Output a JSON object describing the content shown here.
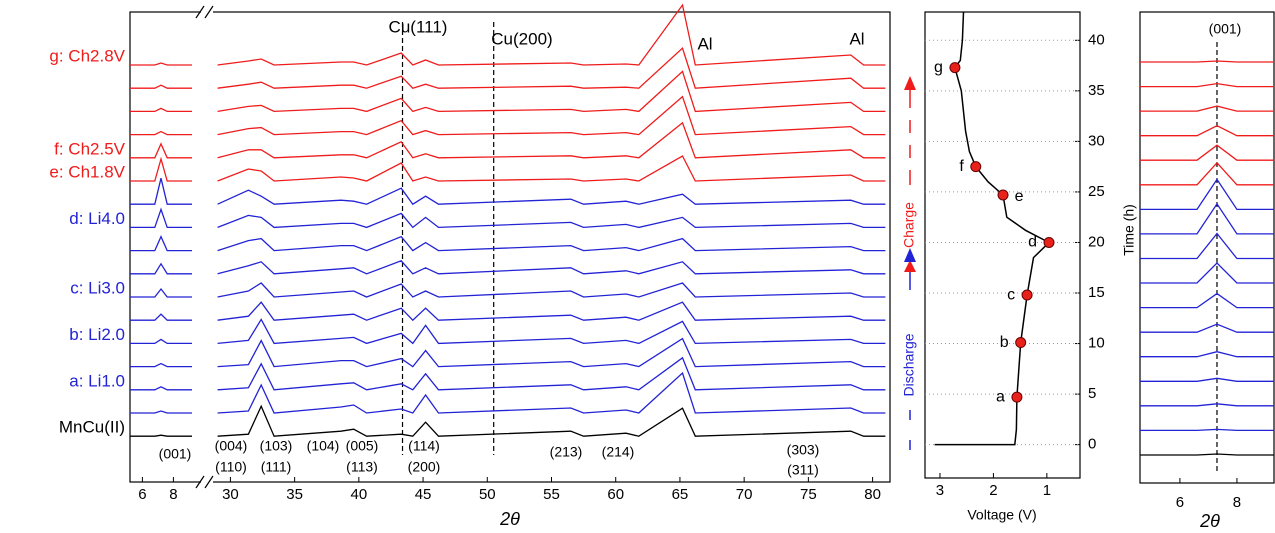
{
  "chart_data": [
    {
      "type": "line",
      "offset": true,
      "xlabel": "2θ",
      "xlim": [
        28.8,
        81.2
      ],
      "xticks": [
        30,
        35,
        40,
        45,
        50,
        55,
        60,
        65,
        70,
        75,
        80
      ],
      "x": [
        29,
        31.4,
        32.4,
        33.4,
        38.6,
        39.6,
        40.6,
        43.3,
        44.2,
        45.2,
        46.2,
        56.5,
        57.5,
        60.8,
        61.8,
        65.2,
        66.2,
        78.3,
        79.3,
        81
      ],
      "reference_lines": [
        43.4,
        50.5
      ],
      "annotations": [
        "(004)",
        "(110)",
        "(103)",
        "(111)",
        "(104)",
        "(005)",
        "(113)",
        "(114)",
        "(200)",
        "(213)",
        "(214)",
        "(303)",
        "(311)",
        "Cu(111)",
        "Cu(200)",
        "Al",
        "Al"
      ],
      "series": [
        {
          "name": "g: Ch2.8V",
          "color": "#f01c1c",
          "values": [
            0,
            4,
            6,
            0,
            3,
            3,
            0,
            12,
            0,
            5,
            0,
            2,
            0,
            1,
            0,
            60,
            0,
            10,
            0,
            0
          ]
        },
        {
          "color": "#f01c1c",
          "values": [
            0,
            4,
            6,
            0,
            3,
            3,
            0,
            12,
            0,
            4,
            0,
            2,
            0,
            1,
            0,
            40,
            0,
            10,
            0,
            0
          ]
        },
        {
          "color": "#f01c1c",
          "values": [
            0,
            5,
            6,
            0,
            3,
            3,
            0,
            13,
            0,
            4,
            0,
            2,
            0,
            2,
            0,
            40,
            0,
            9,
            0,
            0
          ]
        },
        {
          "color": "#f01c1c",
          "values": [
            0,
            6,
            7,
            0,
            3,
            3,
            0,
            14,
            0,
            4,
            0,
            2,
            0,
            2,
            0,
            38,
            0,
            8,
            0,
            0
          ]
        },
        {
          "name": "f: Ch2.5V",
          "color": "#f01c1c",
          "values": [
            0,
            8,
            8,
            0,
            3,
            3,
            0,
            16,
            0,
            4,
            0,
            2,
            0,
            2,
            0,
            35,
            0,
            8,
            0,
            0
          ]
        },
        {
          "name": "e: Ch1.8V",
          "color": "#f01c1c",
          "values": [
            0,
            12,
            10,
            0,
            4,
            3,
            0,
            18,
            0,
            4,
            0,
            2,
            0,
            2,
            0,
            25,
            0,
            6,
            0,
            0
          ]
        },
        {
          "color": "#2323d6",
          "values": [
            0,
            14,
            8,
            0,
            4,
            3,
            0,
            16,
            0,
            8,
            0,
            5,
            0,
            3,
            0,
            10,
            0,
            4,
            0,
            0
          ]
        },
        {
          "name": "d: Li4.0",
          "color": "#2323d6",
          "values": [
            0,
            12,
            10,
            0,
            4,
            4,
            0,
            14,
            0,
            10,
            0,
            5,
            0,
            3,
            0,
            10,
            0,
            4,
            0,
            0
          ]
        },
        {
          "color": "#2323d6",
          "values": [
            0,
            10,
            12,
            0,
            5,
            5,
            0,
            14,
            0,
            8,
            0,
            5,
            0,
            3,
            0,
            12,
            0,
            4,
            0,
            0
          ]
        },
        {
          "color": "#2323d6",
          "values": [
            0,
            8,
            12,
            0,
            5,
            6,
            0,
            13,
            0,
            6,
            0,
            6,
            0,
            3,
            0,
            12,
            0,
            4,
            0,
            0
          ]
        },
        {
          "name": "c: Li3.0",
          "color": "#2323d6",
          "values": [
            0,
            6,
            14,
            0,
            5,
            6,
            0,
            13,
            0,
            6,
            0,
            6,
            0,
            3,
            0,
            14,
            0,
            4,
            0,
            0
          ]
        },
        {
          "color": "#2323d6",
          "values": [
            0,
            4,
            18,
            0,
            5,
            6,
            0,
            12,
            0,
            12,
            0,
            5,
            0,
            3,
            0,
            18,
            0,
            4,
            0,
            0
          ]
        },
        {
          "name": "b: Li2.0",
          "color": "#2323d6",
          "values": [
            0,
            3,
            24,
            0,
            5,
            6,
            0,
            10,
            0,
            18,
            0,
            5,
            0,
            3,
            0,
            22,
            0,
            4,
            0,
            0
          ]
        },
        {
          "color": "#2323d6",
          "values": [
            0,
            2,
            26,
            0,
            6,
            6,
            0,
            8,
            0,
            16,
            0,
            5,
            0,
            3,
            0,
            28,
            0,
            5,
            0,
            0
          ]
        },
        {
          "name": "a: Li1.0",
          "color": "#2323d6",
          "values": [
            0,
            2,
            26,
            0,
            6,
            7,
            0,
            6,
            0,
            16,
            0,
            5,
            0,
            3,
            0,
            32,
            0,
            5,
            0,
            0
          ]
        },
        {
          "color": "#2323d6",
          "values": [
            0,
            2,
            28,
            0,
            6,
            8,
            0,
            4,
            0,
            18,
            0,
            5,
            0,
            3,
            0,
            40,
            0,
            5,
            0,
            0
          ]
        },
        {
          "name": "MnCu(II)",
          "color": "#000000",
          "values": [
            0,
            2,
            30,
            0,
            5,
            7,
            0,
            2,
            0,
            14,
            0,
            5,
            0,
            3,
            0,
            28,
            0,
            5,
            0,
            0
          ]
        }
      ]
    },
    {
      "type": "line",
      "offset": true,
      "xlim": [
        5.2,
        9.2
      ],
      "xticks": [
        6,
        8
      ],
      "x": [
        5.2,
        6.8,
        7.2,
        7.6,
        9.2
      ],
      "annotations": [
        "(001)"
      ],
      "series": [
        {
          "color": "#f01c1c",
          "values": [
            0,
            0,
            2,
            0,
            0
          ]
        },
        {
          "color": "#f01c1c",
          "values": [
            0,
            0,
            3,
            0,
            0
          ]
        },
        {
          "color": "#f01c1c",
          "values": [
            0,
            0,
            3,
            0,
            0
          ]
        },
        {
          "color": "#f01c1c",
          "values": [
            0,
            0,
            3,
            0,
            0
          ]
        },
        {
          "color": "#f01c1c",
          "values": [
            0,
            0,
            14,
            0,
            0
          ]
        },
        {
          "color": "#f01c1c",
          "values": [
            0,
            0,
            22,
            0,
            0
          ]
        },
        {
          "color": "#2323d6",
          "values": [
            0,
            0,
            26,
            0,
            0
          ]
        },
        {
          "color": "#2323d6",
          "values": [
            0,
            0,
            18,
            0,
            0
          ]
        },
        {
          "color": "#2323d6",
          "values": [
            0,
            0,
            14,
            0,
            0
          ]
        },
        {
          "color": "#2323d6",
          "values": [
            0,
            0,
            10,
            0,
            0
          ]
        },
        {
          "color": "#2323d6",
          "values": [
            0,
            0,
            8,
            0,
            0
          ]
        },
        {
          "color": "#2323d6",
          "values": [
            0,
            0,
            6,
            0,
            0
          ]
        },
        {
          "color": "#2323d6",
          "values": [
            0,
            0,
            4,
            0,
            0
          ]
        },
        {
          "color": "#2323d6",
          "values": [
            0,
            0,
            3,
            0,
            0
          ]
        },
        {
          "color": "#2323d6",
          "values": [
            0,
            0,
            3,
            0,
            0
          ]
        },
        {
          "color": "#2323d6",
          "values": [
            0,
            0,
            2,
            0,
            0
          ]
        },
        {
          "color": "#000000",
          "values": [
            0,
            0,
            1,
            0,
            0
          ]
        }
      ]
    },
    {
      "type": "line",
      "offset": false,
      "xlabel": "Voltage (V)",
      "ylabel": "Time (h)",
      "grid": true,
      "xlim": [
        3.28,
        0.38
      ],
      "xticks": [
        3,
        2,
        1
      ],
      "ylim": [
        -3.3,
        42.8
      ],
      "yticks": [
        0,
        5,
        10,
        15,
        20,
        25,
        30,
        35,
        40
      ],
      "x": [
        3.1,
        1.6,
        1.57,
        1.56,
        1.49,
        1.37,
        1.25,
        0.96,
        1.4,
        1.75,
        1.82,
        2.1,
        2.33,
        2.45,
        2.52,
        2.6,
        2.72,
        2.62,
        2.58,
        2.56
      ],
      "series": [
        {
          "color": "#000000",
          "values": [
            0,
            0,
            1.5,
            4.7,
            10.1,
            14.8,
            18.5,
            20,
            21.2,
            22.5,
            24.7,
            26,
            27.5,
            29,
            31,
            35,
            37.3,
            38,
            40,
            42.8
          ]
        }
      ],
      "points": {
        "color": "#e8221b",
        "labels": [
          "g",
          "f",
          "e",
          "d",
          "c",
          "b",
          "a"
        ],
        "x": [
          2.72,
          2.33,
          1.82,
          0.96,
          1.37,
          1.49,
          1.56
        ],
        "values": [
          37.3,
          27.5,
          24.7,
          20,
          14.8,
          10.1,
          4.7
        ]
      },
      "annotations": [
        "Charge",
        "Discharge"
      ]
    },
    {
      "type": "line",
      "offset": true,
      "xlabel": "2θ",
      "xlim": [
        4.6,
        9.3
      ],
      "xticks": [
        6,
        8
      ],
      "x": [
        4.6,
        6.6,
        7.3,
        8.0,
        9.3
      ],
      "reference_lines": [
        7.3
      ],
      "annotations": [
        "(001)"
      ],
      "series": [
        {
          "color": "#f01c1c",
          "values": [
            0,
            0,
            1,
            0,
            0
          ]
        },
        {
          "color": "#f01c1c",
          "values": [
            0,
            0,
            3,
            0,
            0
          ]
        },
        {
          "color": "#f01c1c",
          "values": [
            0,
            0,
            5,
            0,
            0
          ]
        },
        {
          "color": "#f01c1c",
          "values": [
            0,
            0,
            10,
            0,
            0
          ]
        },
        {
          "color": "#f01c1c",
          "values": [
            0,
            0,
            15,
            0,
            0
          ]
        },
        {
          "color": "#f01c1c",
          "values": [
            0,
            0,
            22,
            0,
            0
          ]
        },
        {
          "color": "#2323d6",
          "values": [
            0,
            0,
            30,
            0,
            0
          ]
        },
        {
          "color": "#2323d6",
          "values": [
            0,
            0,
            30,
            0,
            0
          ]
        },
        {
          "color": "#2323d6",
          "values": [
            0,
            0,
            25,
            0,
            0
          ]
        },
        {
          "color": "#2323d6",
          "values": [
            0,
            0,
            20,
            0,
            0
          ]
        },
        {
          "color": "#2323d6",
          "values": [
            0,
            0,
            14,
            0,
            0
          ]
        },
        {
          "color": "#2323d6",
          "values": [
            0,
            0,
            8,
            0,
            0
          ]
        },
        {
          "color": "#2323d6",
          "values": [
            0,
            0,
            5,
            0,
            0
          ]
        },
        {
          "color": "#2323d6",
          "values": [
            0,
            0,
            3,
            0,
            0
          ]
        },
        {
          "color": "#2323d6",
          "values": [
            0,
            0,
            2,
            0,
            0
          ]
        },
        {
          "color": "#2323d6",
          "values": [
            0,
            0,
            1,
            0,
            0
          ]
        },
        {
          "color": "#000000",
          "values": [
            0,
            0,
            1,
            0,
            0
          ]
        }
      ]
    }
  ]
}
